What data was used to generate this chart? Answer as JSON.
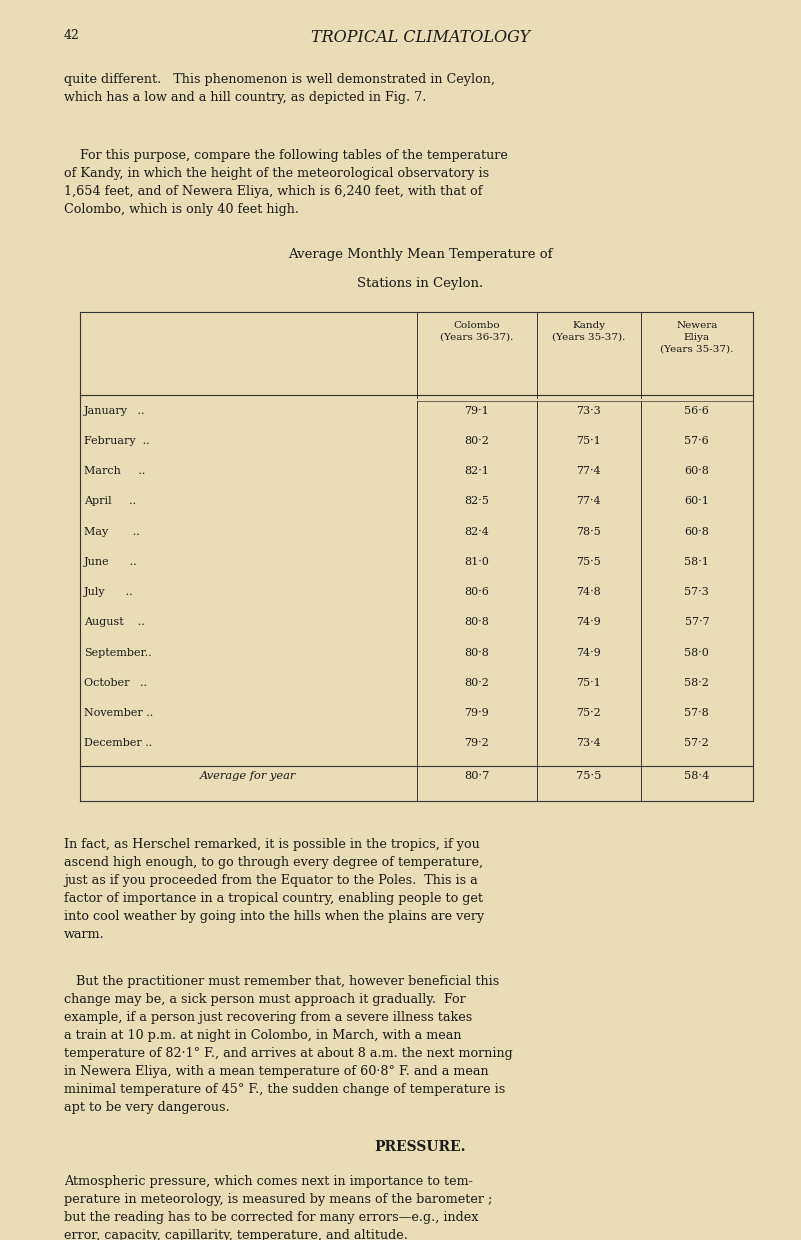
{
  "background_color": "#e8ddb5",
  "page_number": "42",
  "header_title": "TROPICAL CLIMATOLOGY",
  "para1": "quite different.   This phenomenon is well demonstrated in Ceylon,\nwhich has a low and a hill country, as depicted in Fig. 7.",
  "para2": "    For this purpose, compare the following tables of the temperature\nof Kandy, in which the height of the meteorological observatory is\n1,654 feet, and of Newera Eliya, which is 6,240 feet, with that of\nColombo, which is only 40 feet high.",
  "table_title_line1": "Average Monthly Mean Temperature of",
  "table_title_line2": "Stations in Ceylon.",
  "colombo": [
    "79·1",
    "80·2",
    "82·1",
    "82·5",
    "82·4",
    "81·0",
    "80·6",
    "80·8",
    "80·8",
    "80·2",
    "79·9",
    "79·2"
  ],
  "kandy": [
    "73·3",
    "75·1",
    "77·4",
    "77·4",
    "78·5",
    "75·5",
    "74·8",
    "74·9",
    "74·9",
    "75·1",
    "75·2",
    "73·4"
  ],
  "newera": [
    "56·6",
    "57·6",
    "60·8",
    "60·1",
    "60·8",
    "58·1",
    "57·3",
    "57·7",
    "58·0",
    "58·2",
    "57·8",
    "57·2"
  ],
  "avg_colombo": "80·7",
  "avg_kandy": "75·5",
  "avg_newera": "58·4",
  "para3": "In fact, as Herschel remarked, it is possible in the tropics, if you\nascend high enough, to go through every degree of temperature,\njust as if you proceeded from the Equator to the Poles.  This is a\nfactor of importance in a tropical country, enabling people to get\ninto cool weather by going into the hills when the plains are very\nwarm.",
  "para4": "   But the practitioner must remember that, however beneficial this\nchange may be, a sick person must approach it gradually.  For\nexample, if a person just recovering from a severe illness takes\na train at 10 p.m. at night in Colombo, in March, with a mean\ntemperature of 82·1° F., and arrives at about 8 a.m. the next morning\nin Newera Eliya, with a mean temperature of 60·8° F. and a mean\nminimal temperature of 45° F., the sudden change of temperature is\napt to be very dangerous.",
  "pressure_header": "PRESSURE.",
  "para5": "Atmospheric pressure, which comes next in importance to tem-\nperature in meteorology, is measured by means of the barometer ;\nbut the reading has to be corrected for many errors—e.g., index\nerror, capacity, capillarity, temperature, and altitude."
}
